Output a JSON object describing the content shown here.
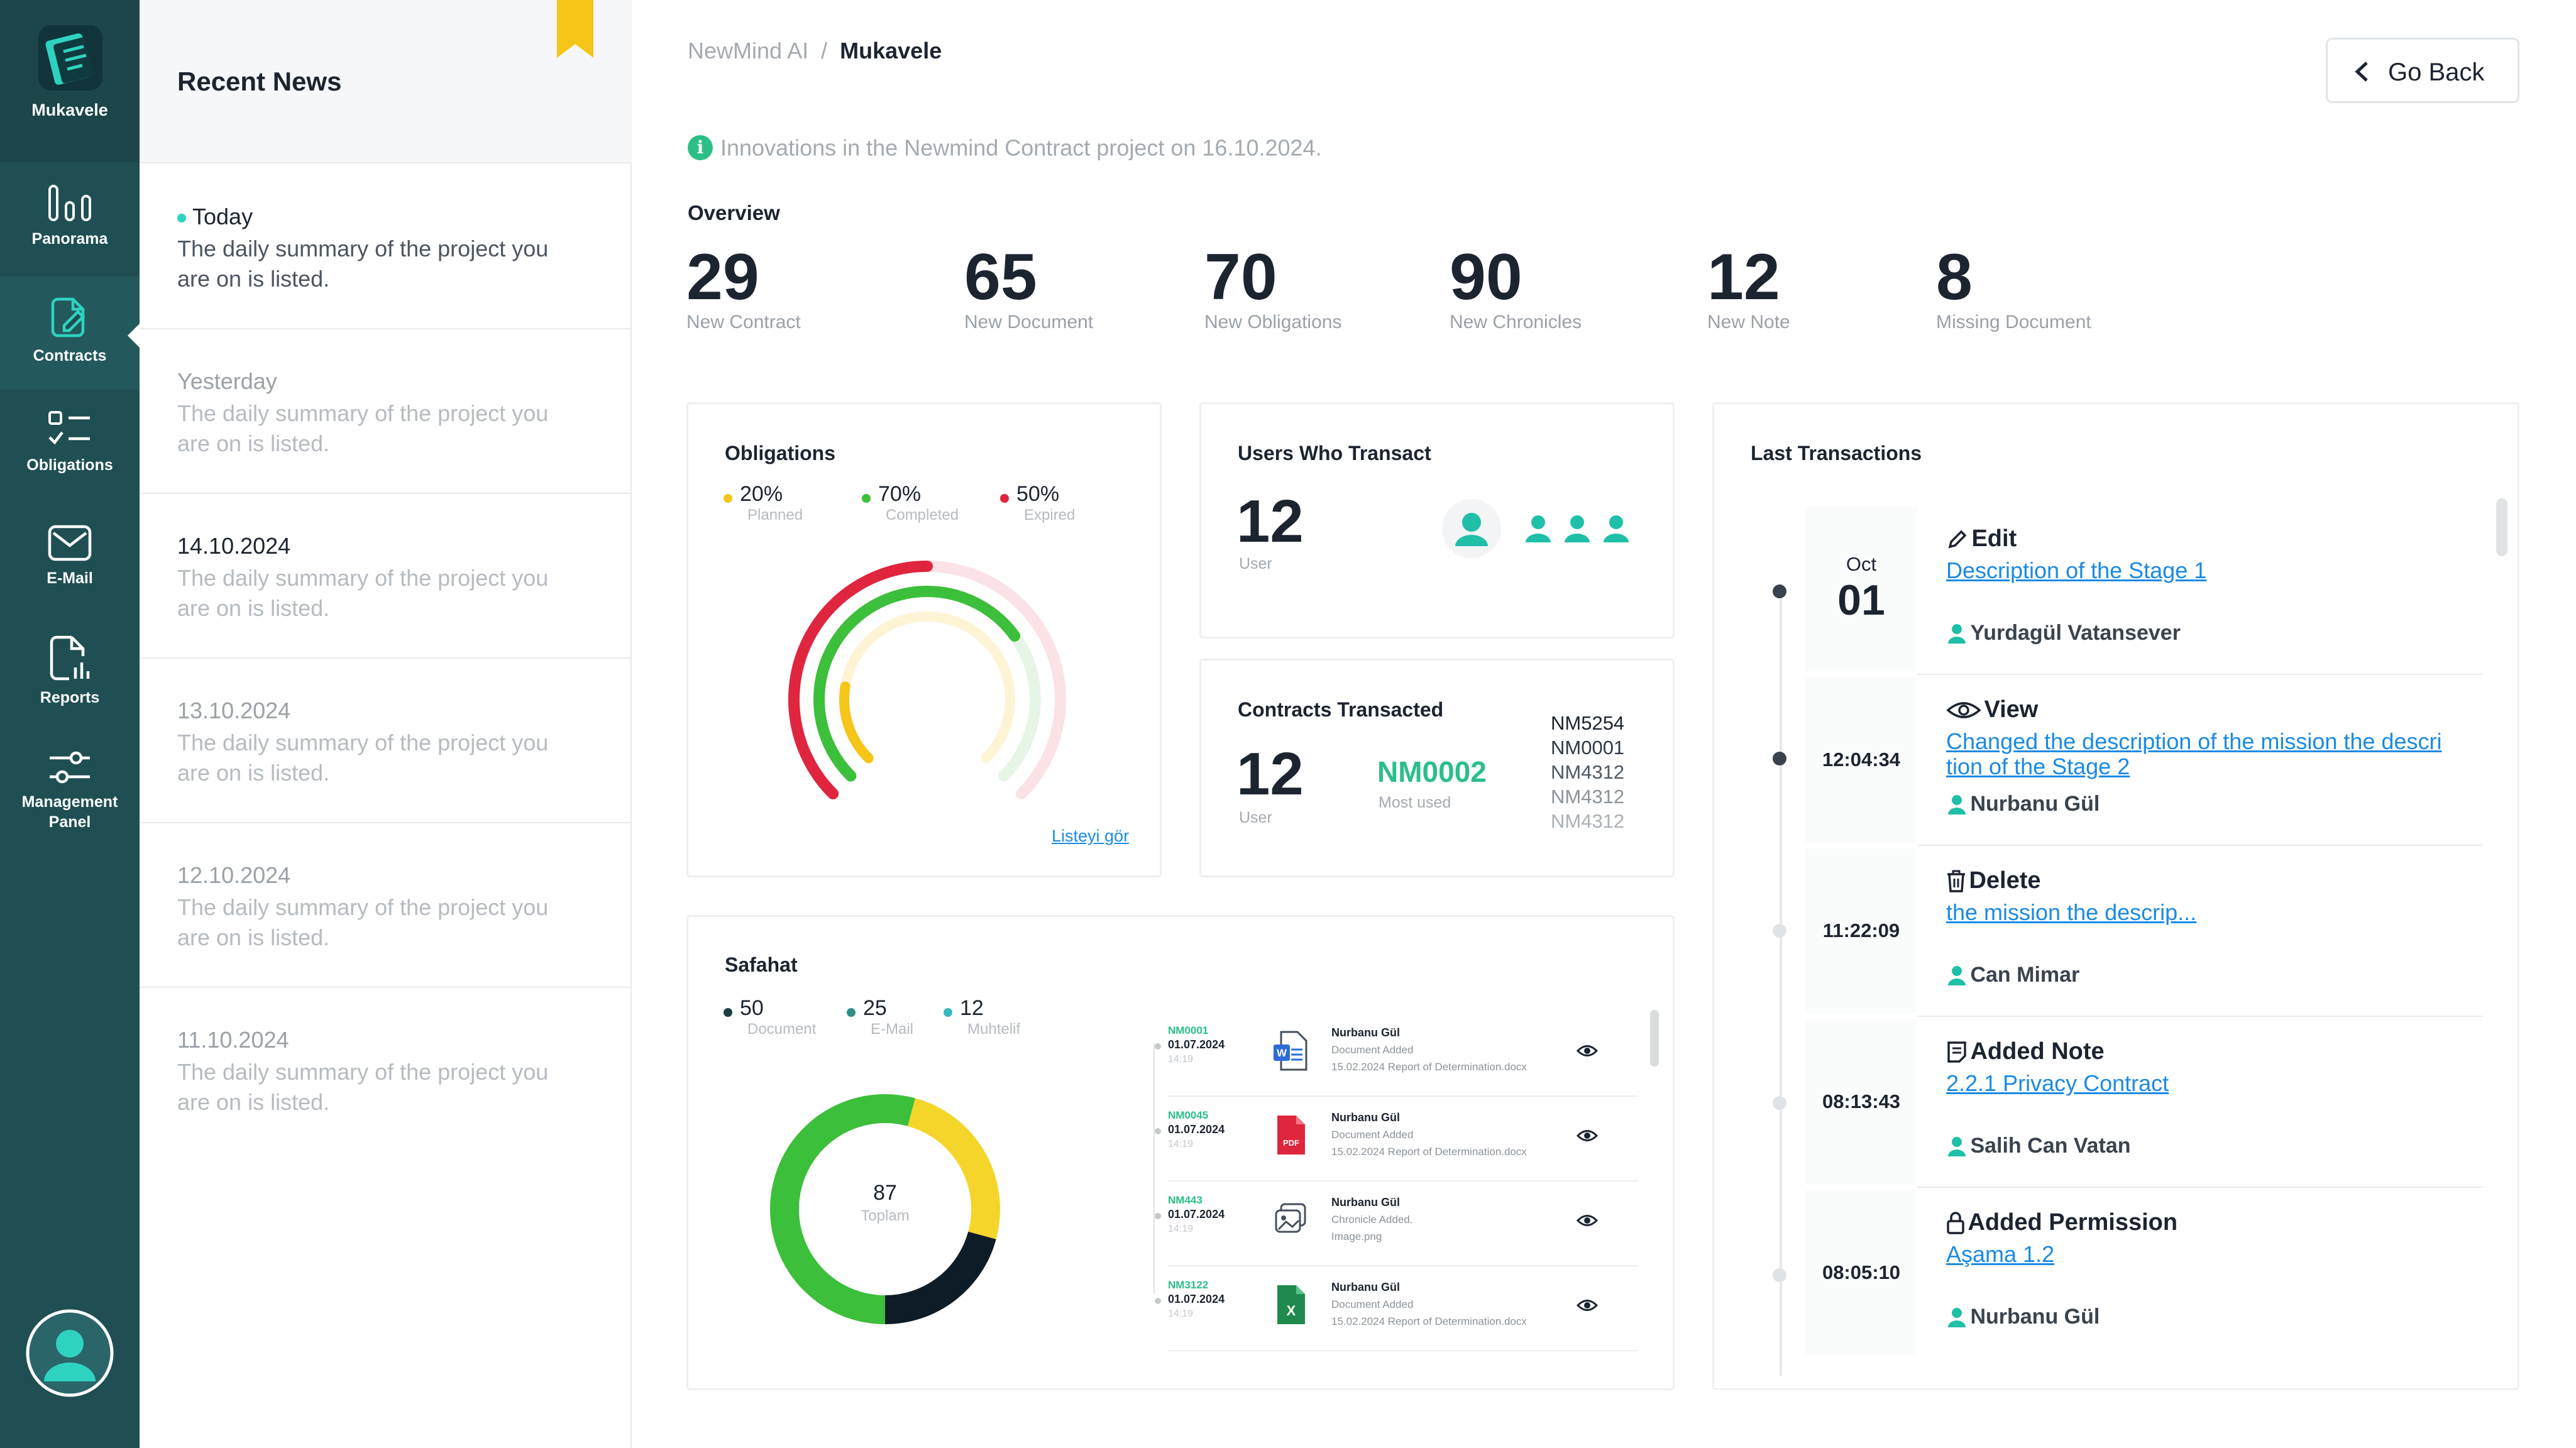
{
  "sidebar": {
    "app_name": "Mukavele",
    "items": [
      {
        "label": "Panorama"
      },
      {
        "label": "Contracts"
      },
      {
        "label": "Obligations"
      },
      {
        "label": "E-Mail"
      },
      {
        "label": "Reports"
      },
      {
        "label": "Management",
        "label2": "Panel"
      }
    ]
  },
  "news": {
    "title": "Recent News",
    "items": [
      {
        "date": "Today",
        "text": "The daily summary of the project you are on is listed."
      },
      {
        "date": "Yesterday",
        "text": "The daily summary of the project you are on is listed."
      },
      {
        "date": "14.10.2024",
        "text": "The daily summary of the project you are on is listed."
      },
      {
        "date": "13.10.2024",
        "text": "The daily summary of the project you are on is listed."
      },
      {
        "date": "12.10.2024",
        "text": "The daily summary of the project you are on is listed."
      },
      {
        "date": "11.10.2024",
        "text": "The daily summary of the project you are on is listed."
      }
    ]
  },
  "header": {
    "breadcrumb_root": "NewMind AI",
    "breadcrumb_sep": "/",
    "breadcrumb_current": "Mukavele",
    "go_back": "Go Back",
    "info": "Innovations in the Newmind Contract project on 16.10.2024."
  },
  "overview": {
    "title": "Overview",
    "stats": [
      {
        "value": "29",
        "label": "New Contract"
      },
      {
        "value": "65",
        "label": "New Document"
      },
      {
        "value": "70",
        "label": "New Obligations"
      },
      {
        "value": "90",
        "label": "New Chronicles"
      },
      {
        "value": "12",
        "label": "New Note"
      },
      {
        "value": "8",
        "label": "Missing Document"
      }
    ]
  },
  "obligations": {
    "title": "Obligations",
    "legend": [
      {
        "value": "20%",
        "label": "Planned",
        "color": "#f5c518"
      },
      {
        "value": "70%",
        "label": "Completed",
        "color": "#3cbf3a"
      },
      {
        "value": "50%",
        "label": "Expired",
        "color": "#e0253f"
      }
    ],
    "link": "Listeyi gör"
  },
  "users": {
    "title": "Users Who Transact",
    "value": "12",
    "label": "User"
  },
  "contracts": {
    "title": "Contracts Transacted",
    "value": "12",
    "label": "User",
    "most_code": "NM0002",
    "most_label": "Most used",
    "codes": [
      "NM5254",
      "NM0001",
      "NM4312",
      "NM4312",
      "NM4312"
    ]
  },
  "safahat": {
    "title": "Safahat",
    "legend": [
      {
        "value": "50",
        "label": "Document",
        "color": "#1c3d40"
      },
      {
        "value": "25",
        "label": "E-Mail",
        "color": "#2e8f8a"
      },
      {
        "value": "12",
        "label": "Muhtelif",
        "color": "#3ab8c2"
      }
    ],
    "total": "87",
    "total_label": "Toplam",
    "rows": [
      {
        "code": "NM0001",
        "date": "01.07.2024",
        "time": "14:19",
        "user": "Nurbanu Gül",
        "action": "Document Added",
        "detail": "15.02.2024 Report of Determination.docx",
        "icon": "word-icon"
      },
      {
        "code": "NM0045",
        "date": "01.07.2024",
        "time": "14:19",
        "user": "Nurbanu Gül",
        "action": "Document Added",
        "detail": "15.02.2024 Report of Determination.docx",
        "icon": "pdf-icon"
      },
      {
        "code": "NM443",
        "date": "01.07.2024",
        "time": "14:19",
        "user": "Nurbanu Gül",
        "action": "Chronicle Added.",
        "detail": "Image.png",
        "icon": "image-icon"
      },
      {
        "code": "NM3122",
        "date": "01.07.2024",
        "time": "14:19",
        "user": "Nurbanu Gül",
        "action": "Document Added",
        "detail": "15.02.2024 Report of Determination.docx",
        "icon": "excel-icon"
      }
    ],
    "word_badge": "W",
    "pdf_badge": "PDF",
    "excel_badge": "X"
  },
  "transactions": {
    "title": "Last Transactions",
    "items": [
      {
        "month": "Oct",
        "day": "01",
        "type": "Edit",
        "link": "Description of the Stage 1",
        "user": "Yurdagül Vatansever"
      },
      {
        "time": "12:04:34",
        "type": "View",
        "link": "Changed the description of the mission the descri",
        "link2": "tion of the Stage 2",
        "user": "Nurbanu Gül"
      },
      {
        "time": "11:22:09",
        "type": "Delete",
        "link": "the mission the descrip...",
        "user": "Can Mimar"
      },
      {
        "time": "08:13:43",
        "type": "Added Note",
        "link": "2.2.1 Privacy Contract",
        "user": "Salih Can Vatan"
      },
      {
        "time": "08:05:10",
        "type": "Added Permission",
        "link": "Aşama 1.2",
        "user": "Nurbanu Gül"
      }
    ]
  }
}
